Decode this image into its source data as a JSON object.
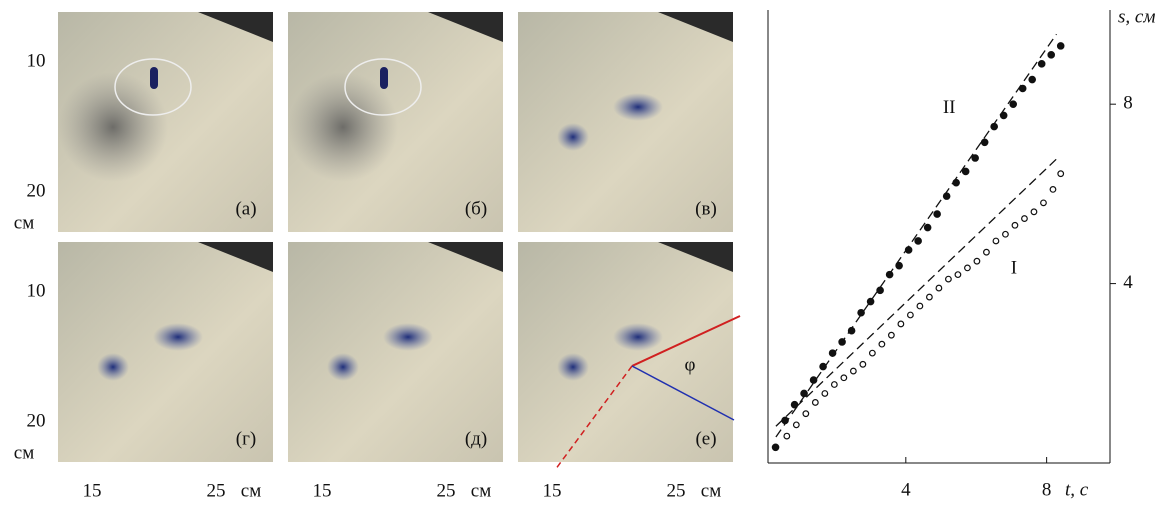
{
  "panels": {
    "labels": [
      "(а)",
      "(б)",
      "(в)",
      "(г)",
      "(д)",
      "(е)"
    ],
    "y_labels": [
      "10",
      "20",
      "см"
    ],
    "x_labels": [
      "15",
      "25",
      "см"
    ],
    "angle_label": "φ"
  },
  "chart_data": {
    "type": "scatter",
    "xlabel": "t, с",
    "ylabel": "s, см",
    "xlim": [
      0,
      9.8
    ],
    "ylim": [
      0,
      10.1
    ],
    "xticks": [
      4,
      8
    ],
    "yticks": [
      4,
      8
    ],
    "series": [
      {
        "name": "II",
        "color": "#111111",
        "marker": "filled",
        "x": [
          0.3,
          0.57,
          0.84,
          1.11,
          1.38,
          1.65,
          1.92,
          2.19,
          2.46,
          2.73,
          3.0,
          3.27,
          3.54,
          3.81,
          4.08,
          4.35,
          4.62,
          4.89,
          5.16,
          5.43,
          5.7,
          5.97,
          6.24,
          6.51,
          6.78,
          7.05,
          7.32,
          7.59,
          7.86,
          8.13,
          8.4
        ],
        "values": [
          0.35,
          0.95,
          1.3,
          1.55,
          1.85,
          2.15,
          2.45,
          2.7,
          2.95,
          3.35,
          3.6,
          3.85,
          4.2,
          4.4,
          4.75,
          4.95,
          5.25,
          5.55,
          5.95,
          6.25,
          6.5,
          6.8,
          7.15,
          7.5,
          7.75,
          8.0,
          8.35,
          8.55,
          8.9,
          9.1,
          9.3
        ]
      },
      {
        "name": "I",
        "color": "#111111",
        "marker": "open",
        "x": [
          0.62,
          0.89,
          1.16,
          1.43,
          1.7,
          1.97,
          2.24,
          2.51,
          2.78,
          3.05,
          3.32,
          3.59,
          3.86,
          4.13,
          4.4,
          4.67,
          4.94,
          5.21,
          5.48,
          5.75,
          6.02,
          6.29,
          6.56,
          6.83,
          7.1,
          7.37,
          7.64,
          7.91,
          8.18,
          8.4
        ],
        "values": [
          0.6,
          0.85,
          1.1,
          1.35,
          1.55,
          1.75,
          1.9,
          2.05,
          2.2,
          2.45,
          2.65,
          2.85,
          3.1,
          3.3,
          3.5,
          3.7,
          3.9,
          4.1,
          4.2,
          4.35,
          4.5,
          4.7,
          4.95,
          5.1,
          5.3,
          5.45,
          5.6,
          5.8,
          6.1,
          6.45
        ]
      },
      {
        "color": "#111111",
        "marker": "dashed",
        "x": [
          0.31,
          8.28
        ],
        "values": [
          0.58,
          9.56
        ]
      },
      {
        "color": "#111111",
        "marker": "dashed",
        "x": [
          0.31,
          8.31
        ],
        "values": [
          0.82,
          6.8
        ]
      }
    ]
  }
}
